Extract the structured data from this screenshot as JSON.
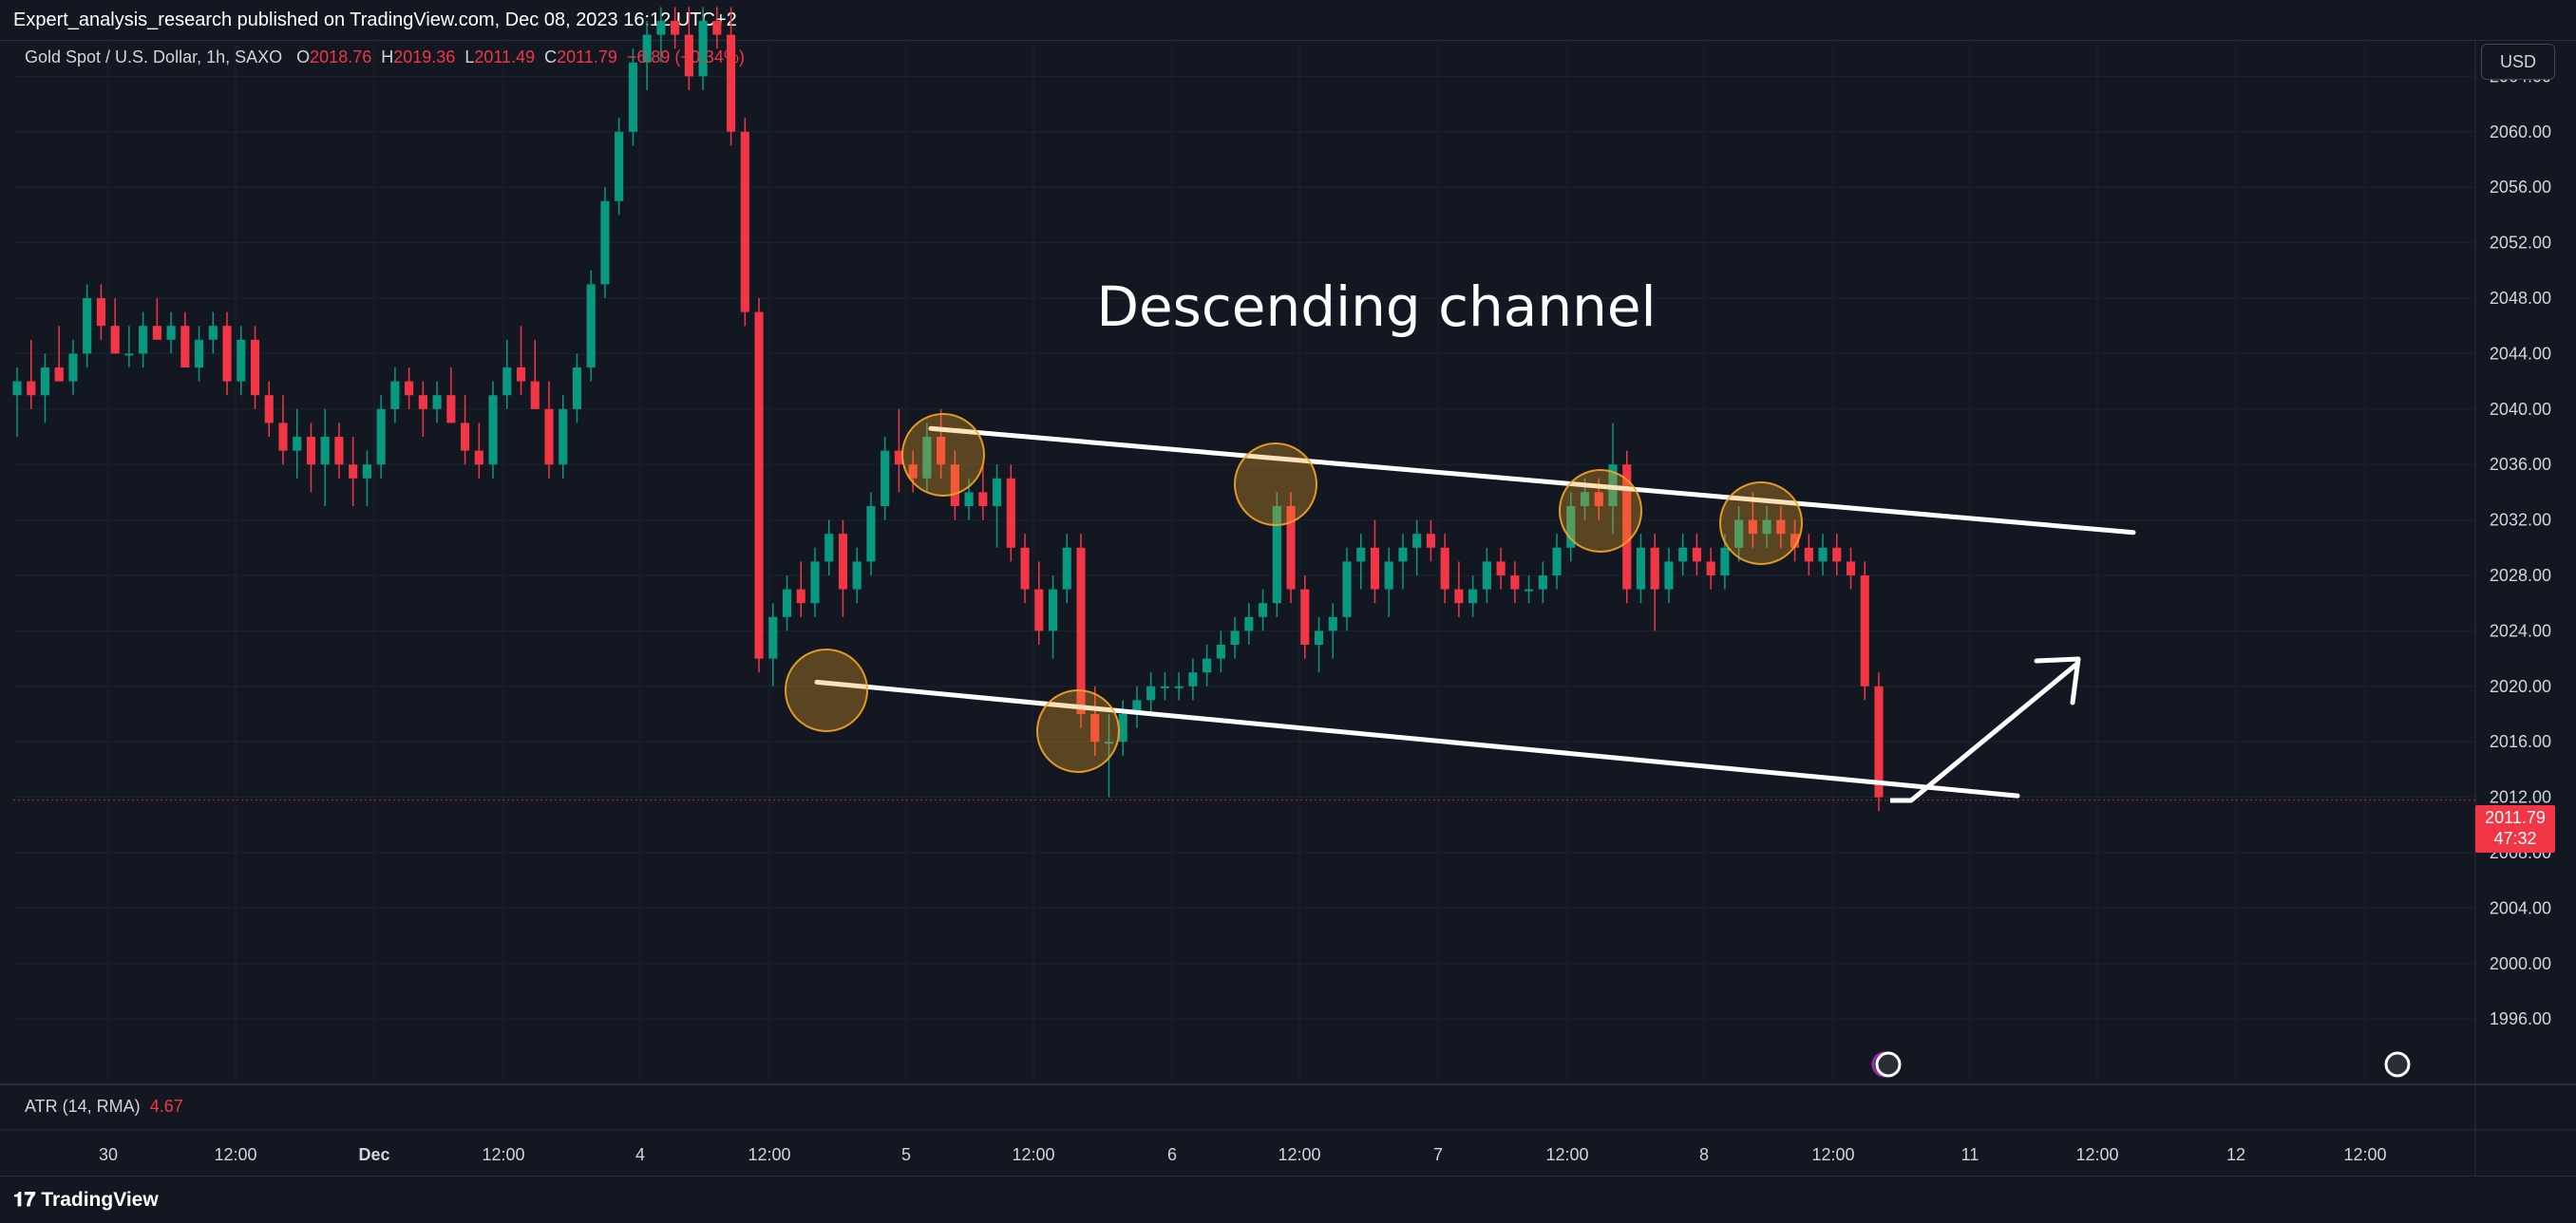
{
  "header": {
    "publisher": "Expert_analysis_research published on TradingView.com, Dec 08, 2023 16:12 UTC+2"
  },
  "legend": {
    "symbol": "Gold Spot / U.S. Dollar, 1h, SAXO",
    "open_label": "O",
    "open": "2018.76",
    "high_label": "H",
    "high": "2019.36",
    "low_label": "L",
    "low": "2011.49",
    "close_label": "C",
    "close": "2011.79",
    "change": "−6.89 (−0.34%)"
  },
  "currency": "USD",
  "annotation": "Descending channel",
  "indicator": {
    "name": "ATR (14, RMA)",
    "value": "4.67"
  },
  "price_badge": {
    "price": "2011.79",
    "countdown": "47:32"
  },
  "footer": {
    "brand": "TradingView"
  },
  "colors": {
    "up": "#089981",
    "down": "#f23645",
    "background": "#131722",
    "marker": "#f5a623"
  },
  "chart_data": {
    "type": "candlestick",
    "title": "",
    "y_ticks": [
      "2064.00",
      "2060.00",
      "2056.00",
      "2052.00",
      "2048.00",
      "2044.00",
      "2040.00",
      "2036.00",
      "2032.00",
      "2028.00",
      "2024.00",
      "2020.00",
      "2016.00",
      "2012.00",
      "2008.00",
      "2004.00",
      "2000.00",
      "1996.00"
    ],
    "x_ticks": [
      "30",
      "12:00",
      "Dec",
      "12:00",
      "4",
      "12:00",
      "5",
      "12:00",
      "6",
      "12:00",
      "7",
      "12:00",
      "8",
      "12:00",
      "11",
      "12:00",
      "12",
      "12:00"
    ],
    "ylim": [
      1994,
      2068
    ],
    "grid": true,
    "last_price": 2011.79,
    "candles": [
      [
        2041,
        2043,
        2038,
        2042
      ],
      [
        2042,
        2045,
        2040,
        2041
      ],
      [
        2041,
        2044,
        2039,
        2043
      ],
      [
        2043,
        2046,
        2042,
        2042
      ],
      [
        2042,
        2045,
        2041,
        2044
      ],
      [
        2044,
        2049,
        2043,
        2048
      ],
      [
        2048,
        2049,
        2045,
        2046
      ],
      [
        2046,
        2048,
        2044,
        2044
      ],
      [
        2044,
        2046,
        2043,
        2044
      ],
      [
        2044,
        2047,
        2043,
        2046
      ],
      [
        2046,
        2048,
        2045,
        2045
      ],
      [
        2045,
        2047,
        2044,
        2046
      ],
      [
        2046,
        2047,
        2043,
        2043
      ],
      [
        2043,
        2046,
        2042,
        2045
      ],
      [
        2045,
        2047,
        2044,
        2046
      ],
      [
        2046,
        2047,
        2041,
        2042
      ],
      [
        2042,
        2046,
        2041,
        2045
      ],
      [
        2045,
        2046,
        2040,
        2041
      ],
      [
        2041,
        2042,
        2038,
        2039
      ],
      [
        2039,
        2041,
        2036,
        2037
      ],
      [
        2037,
        2040,
        2035,
        2038
      ],
      [
        2038,
        2039,
        2034,
        2036
      ],
      [
        2036,
        2040,
        2033,
        2038
      ],
      [
        2038,
        2039,
        2035,
        2036
      ],
      [
        2036,
        2038,
        2033,
        2035
      ],
      [
        2035,
        2037,
        2033,
        2036
      ],
      [
        2036,
        2041,
        2035,
        2040
      ],
      [
        2040,
        2043,
        2039,
        2042
      ],
      [
        2042,
        2043,
        2040,
        2041
      ],
      [
        2041,
        2042,
        2038,
        2040
      ],
      [
        2040,
        2042,
        2039,
        2041
      ],
      [
        2041,
        2043,
        2039,
        2039
      ],
      [
        2039,
        2041,
        2036,
        2037
      ],
      [
        2037,
        2039,
        2035,
        2036
      ],
      [
        2036,
        2042,
        2035,
        2041
      ],
      [
        2041,
        2045,
        2040,
        2043
      ],
      [
        2043,
        2046,
        2041,
        2042
      ],
      [
        2042,
        2045,
        2040,
        2040
      ],
      [
        2040,
        2042,
        2035,
        2036
      ],
      [
        2036,
        2041,
        2035,
        2040
      ],
      [
        2040,
        2044,
        2039,
        2043
      ],
      [
        2043,
        2050,
        2042,
        2049
      ],
      [
        2049,
        2056,
        2048,
        2055
      ],
      [
        2055,
        2061,
        2054,
        2060
      ],
      [
        2060,
        2066,
        2059,
        2065
      ],
      [
        2065,
        2068,
        2063,
        2067
      ],
      [
        2067,
        2069,
        2065,
        2068
      ],
      [
        2068,
        2069,
        2066,
        2067
      ],
      [
        2067,
        2069,
        2063,
        2064
      ],
      [
        2064,
        2069,
        2063,
        2068
      ],
      [
        2068,
        2069,
        2066,
        2067
      ],
      [
        2067,
        2069,
        2059,
        2060
      ],
      [
        2060,
        2061,
        2046,
        2047
      ],
      [
        2047,
        2048,
        2021,
        2022
      ],
      [
        2022,
        2026,
        2020,
        2025
      ],
      [
        2025,
        2028,
        2024,
        2027
      ],
      [
        2027,
        2029,
        2025,
        2026
      ],
      [
        2026,
        2030,
        2025,
        2029
      ],
      [
        2029,
        2032,
        2028,
        2031
      ],
      [
        2031,
        2032,
        2025,
        2027
      ],
      [
        2027,
        2030,
        2026,
        2029
      ],
      [
        2029,
        2034,
        2028,
        2033
      ],
      [
        2033,
        2038,
        2032,
        2037
      ],
      [
        2037,
        2040,
        2034,
        2036
      ],
      [
        2036,
        2037,
        2034,
        2035
      ],
      [
        2035,
        2039,
        2034,
        2038
      ],
      [
        2038,
        2040,
        2035,
        2036
      ],
      [
        2036,
        2037,
        2032,
        2033
      ],
      [
        2033,
        2035,
        2032,
        2034
      ],
      [
        2034,
        2036,
        2032,
        2033
      ],
      [
        2033,
        2036,
        2030,
        2035
      ],
      [
        2035,
        2036,
        2029,
        2030
      ],
      [
        2030,
        2031,
        2026,
        2027
      ],
      [
        2027,
        2029,
        2023,
        2024
      ],
      [
        2024,
        2028,
        2022,
        2027
      ],
      [
        2027,
        2031,
        2026,
        2030
      ],
      [
        2030,
        2031,
        2017,
        2018
      ],
      [
        2018,
        2020,
        2015,
        2016
      ],
      [
        2016,
        2018,
        2012,
        2016
      ],
      [
        2016,
        2019,
        2015,
        2018
      ],
      [
        2018,
        2020,
        2017,
        2019
      ],
      [
        2019,
        2021,
        2018,
        2020
      ],
      [
        2020,
        2021,
        2019,
        2020
      ],
      [
        2020,
        2021,
        2019,
        2020
      ],
      [
        2020,
        2022,
        2019,
        2021
      ],
      [
        2021,
        2023,
        2020,
        2022
      ],
      [
        2022,
        2024,
        2021,
        2023
      ],
      [
        2023,
        2025,
        2022,
        2024
      ],
      [
        2024,
        2026,
        2023,
        2025
      ],
      [
        2025,
        2027,
        2024,
        2026
      ],
      [
        2026,
        2034,
        2025,
        2033
      ],
      [
        2033,
        2034,
        2026,
        2027
      ],
      [
        2027,
        2028,
        2022,
        2023
      ],
      [
        2023,
        2025,
        2021,
        2024
      ],
      [
        2024,
        2026,
        2022,
        2025
      ],
      [
        2025,
        2030,
        2024,
        2029
      ],
      [
        2029,
        2031,
        2027,
        2030
      ],
      [
        2030,
        2032,
        2026,
        2027
      ],
      [
        2027,
        2030,
        2025,
        2029
      ],
      [
        2029,
        2031,
        2027,
        2030
      ],
      [
        2030,
        2032,
        2028,
        2031
      ],
      [
        2031,
        2032,
        2029,
        2030
      ],
      [
        2030,
        2031,
        2026,
        2027
      ],
      [
        2027,
        2029,
        2025,
        2026
      ],
      [
        2026,
        2028,
        2025,
        2027
      ],
      [
        2027,
        2030,
        2026,
        2029
      ],
      [
        2029,
        2030,
        2027,
        2028
      ],
      [
        2028,
        2029,
        2026,
        2027
      ],
      [
        2027,
        2028,
        2026,
        2027
      ],
      [
        2027,
        2029,
        2026,
        2028
      ],
      [
        2028,
        2031,
        2027,
        2030
      ],
      [
        2030,
        2034,
        2029,
        2033
      ],
      [
        2033,
        2035,
        2032,
        2034
      ],
      [
        2034,
        2035,
        2032,
        2033
      ],
      [
        2033,
        2039,
        2031,
        2036
      ],
      [
        2036,
        2037,
        2026,
        2027
      ],
      [
        2027,
        2031,
        2026,
        2030
      ],
      [
        2030,
        2031,
        2024,
        2027
      ],
      [
        2027,
        2030,
        2026,
        2029
      ],
      [
        2029,
        2031,
        2028,
        2030
      ],
      [
        2030,
        2031,
        2028,
        2029
      ],
      [
        2029,
        2030,
        2027,
        2028
      ],
      [
        2028,
        2031,
        2027,
        2030
      ],
      [
        2030,
        2033,
        2029,
        2032
      ],
      [
        2032,
        2034,
        2030,
        2031
      ],
      [
        2031,
        2033,
        2030,
        2032
      ],
      [
        2032,
        2033,
        2030,
        2031
      ],
      [
        2031,
        2032,
        2029,
        2030
      ],
      [
        2030,
        2031,
        2028,
        2029
      ],
      [
        2029,
        2031,
        2028,
        2030
      ],
      [
        2030,
        2031,
        2028,
        2029
      ],
      [
        2029,
        2030,
        2027,
        2028
      ],
      [
        2028,
        2029,
        2019,
        2020
      ],
      [
        2020,
        2021,
        2011,
        2012
      ]
    ],
    "channel_upper": [
      [
        2038.6,
        "start"
      ],
      [
        2031.1,
        "end"
      ]
    ],
    "channel_lower": [
      [
        2020.3,
        "start"
      ],
      [
        2012.1,
        "end"
      ]
    ]
  }
}
